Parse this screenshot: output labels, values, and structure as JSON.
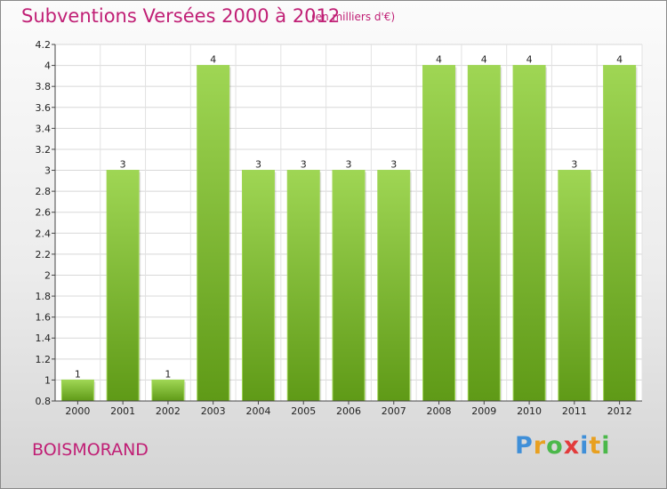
{
  "header": {
    "title": "Subventions Versées 2000 à 2012",
    "unit": "(en milliers d'€)"
  },
  "footer": {
    "place": "BOISMORAND",
    "brand_letters": [
      "P",
      "r",
      "o",
      "x",
      "i",
      "t",
      "i"
    ],
    "brand_colors": [
      "#3f8fd8",
      "#e8a020",
      "#4bb84a",
      "#e23b3b",
      "#3f8fd8",
      "#e8a020",
      "#4bb84a"
    ]
  },
  "chart_data": {
    "type": "bar",
    "title": "Subventions Versées 2000 à 2012",
    "subtitle": "(en milliers d'€)",
    "xlabel": "",
    "ylabel": "",
    "categories": [
      "2000",
      "2001",
      "2002",
      "2003",
      "2004",
      "2005",
      "2006",
      "2007",
      "2008",
      "2009",
      "2010",
      "2011",
      "2012"
    ],
    "values": [
      1,
      3,
      1,
      4,
      3,
      3,
      3,
      3,
      4,
      4,
      4,
      3,
      4
    ],
    "data_labels": [
      "1",
      "3",
      "1",
      "4",
      "3",
      "3",
      "3",
      "3",
      "4",
      "4",
      "4",
      "3",
      "4"
    ],
    "ylim": [
      0.8,
      4.2
    ],
    "yticks": [
      0.8,
      1,
      1.2,
      1.4,
      1.6,
      1.8,
      2,
      2.2,
      2.4,
      2.6,
      2.8,
      3,
      3.2,
      3.4,
      3.6,
      3.8,
      4,
      4.2
    ],
    "ytick_labels": [
      "0.8",
      "1",
      "1.2",
      "1.4",
      "1.6",
      "1.8",
      "2",
      "2.2",
      "2.4",
      "2.6",
      "2.8",
      "3",
      "3.2",
      "3.4",
      "3.6",
      "3.8",
      "4",
      "4.2"
    ],
    "grid": true,
    "legend": "none",
    "bar_color": "#7cbb2e",
    "bar_color_light": "#9fd654",
    "bar_color_dark": "#5f9a17"
  }
}
